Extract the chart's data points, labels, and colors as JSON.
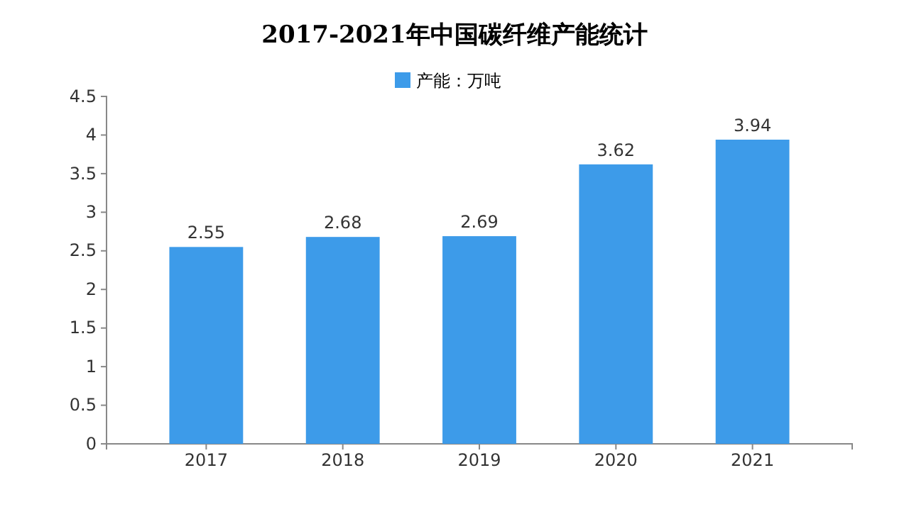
{
  "chart_data": {
    "type": "bar",
    "title": "2017-2021年中国碳纤维产能统计",
    "categories": [
      "2017",
      "2018",
      "2019",
      "2020",
      "2021"
    ],
    "series": [
      {
        "name": "产能：万吨",
        "color": "#3d9be9",
        "values": [
          2.55,
          2.68,
          2.69,
          3.62,
          3.94
        ]
      }
    ],
    "ylim": [
      0,
      4.5
    ],
    "yticks": [
      0,
      0.5,
      1,
      1.5,
      2,
      2.5,
      3,
      3.5,
      4,
      4.5
    ],
    "data_labels": true,
    "legend": "top",
    "grid": false
  }
}
